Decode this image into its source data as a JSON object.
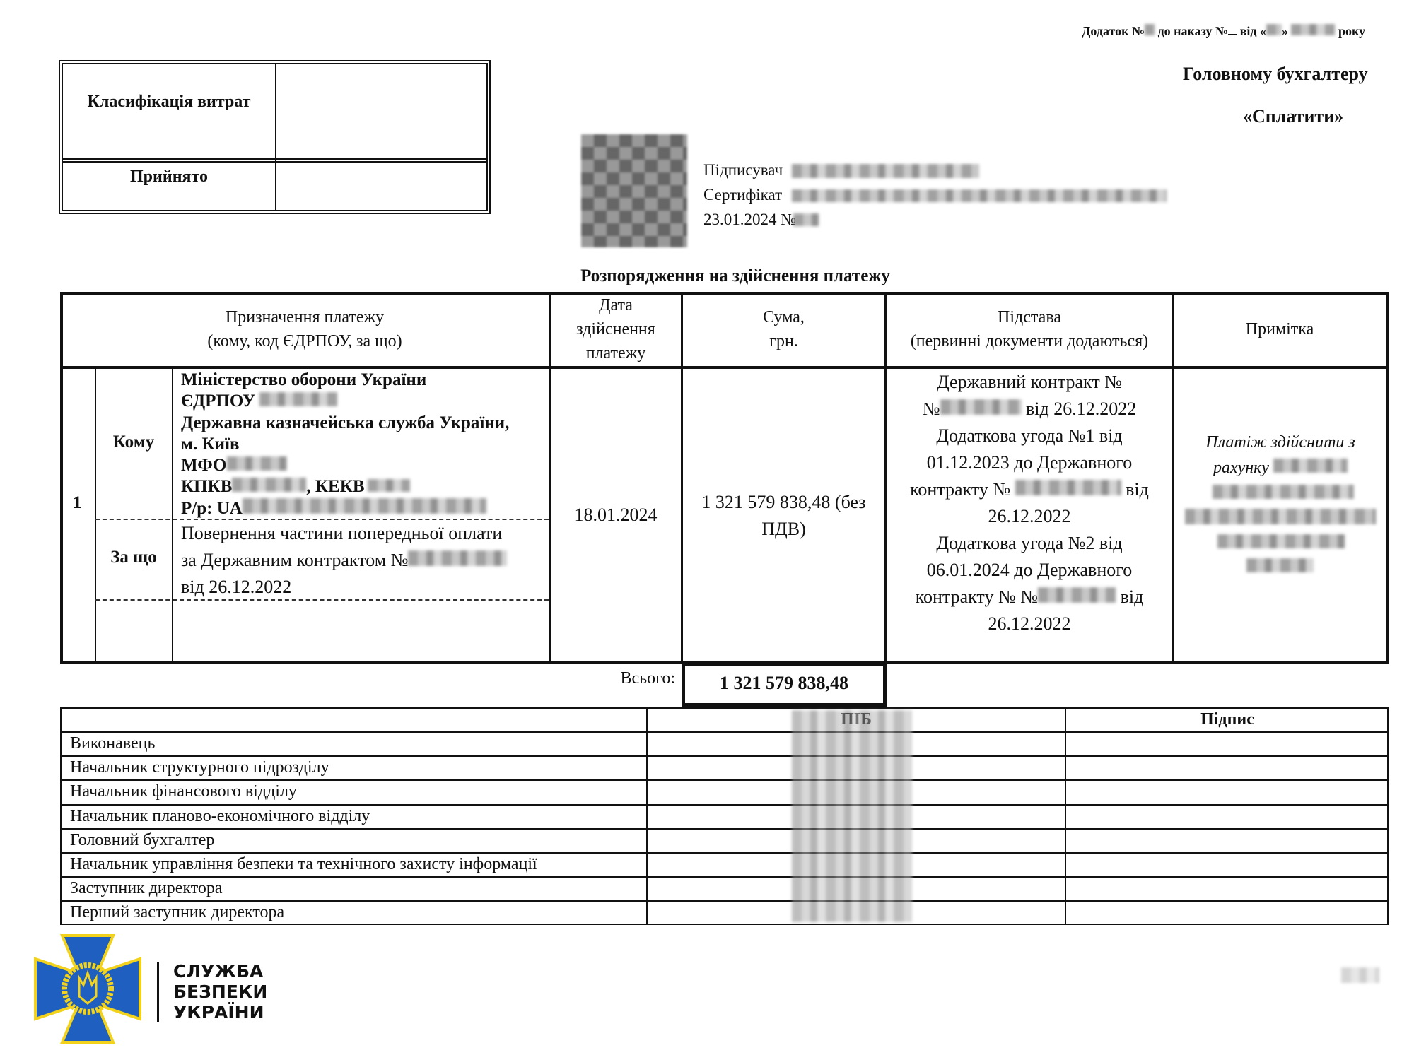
{
  "header": {
    "appendix_prefix": "Додаток №",
    "appendix_middle": "до наказу №",
    "appendix_from": "від «",
    "appendix_year": "року",
    "addressee": "Головному бухгалтеру",
    "resolution": "«Сплатити»"
  },
  "classification_box": {
    "row1_label": "Класифікація витрат",
    "row2_label": "Прийнято"
  },
  "signature_stamp": {
    "signer_label": "Підписувач",
    "certificate_label": "Сертифікат",
    "date_line": "23.01.2024 №"
  },
  "document_title": "Розпорядження на здійснення платежу",
  "payment_table": {
    "headers": {
      "purpose": [
        "Призначення платежу",
        "(кому, код ЄДРПОУ, за що)"
      ],
      "date": [
        "Дата",
        "здійснення",
        "платежу"
      ],
      "sum": [
        "Сума,",
        "грн."
      ],
      "basis": [
        "Підстава",
        "(первинні документи додаються)"
      ],
      "note": [
        "Примітка"
      ]
    },
    "row": {
      "number": "1",
      "to_label": "Кому",
      "for_label": "За що",
      "recipient_lines": [
        "Міністерство оборони України",
        "ЄДРПОУ",
        "Державна казначейська служба України,",
        "м. Київ",
        "МФО",
        "КПКВ",
        ", КЕКВ",
        "Р/р: UA"
      ],
      "purpose_lines": [
        "Повернення частини попередньої оплати",
        "за Державним контрактом №",
        "від 26.12.2022"
      ],
      "date": "18.01.2024",
      "sum_lines": [
        "1 321 579 838,48 (без",
        "ПДВ)"
      ],
      "basis_lines": [
        "Державний контракт №",
        "№",
        "від 26.12.2022",
        "Додаткова угода №1 від",
        "01.12.2023 до Державного",
        "контракту №",
        "від",
        "26.12.2022",
        "Додаткова угода №2 від",
        "06.01.2024 до Державного",
        "контракту № №",
        "від",
        "26.12.2022"
      ],
      "note_lines": [
        "Платіж здійснити з",
        "рахунку"
      ]
    },
    "total_label": "Всього:",
    "total_value": "1 321 579 838,48"
  },
  "signatures_table": {
    "headers": [
      "",
      "ПІБ",
      "Підпис"
    ],
    "rows": [
      "Виконавець",
      "Начальник структурного підрозділу",
      "Начальник фінансового відділу",
      "Начальник планово-економічного відділу",
      "Головний бухгалтер",
      "Начальник управління безпеки та технічного захисту інформації",
      "Заступник директора",
      "Перший заступник директора"
    ]
  },
  "logo": {
    "lines": [
      "СЛУЖБА",
      "БЕЗПЕКИ",
      "УКРАЇНИ"
    ],
    "colors": {
      "blue": "#1f5fbf",
      "gold": "#f2d21b"
    }
  }
}
